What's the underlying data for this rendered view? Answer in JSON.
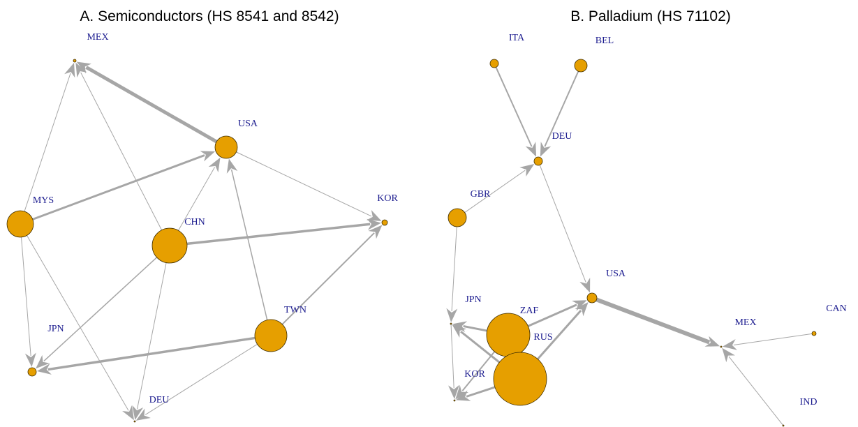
{
  "panels": [
    {
      "title": "A. Semiconductors (HS 8541 and 8542)",
      "nodes": [
        "MEX",
        "USA",
        "KOR",
        "MYS",
        "CHN",
        "TWN",
        "JPN",
        "DEU"
      ]
    },
    {
      "title": "B. Palladium (HS 71102)",
      "nodes": [
        "ITA",
        "BEL",
        "DEU",
        "GBR",
        "USA",
        "JPN",
        "ZAF",
        "RUS",
        "KOR",
        "MEX",
        "CAN",
        "IND"
      ]
    }
  ]
}
